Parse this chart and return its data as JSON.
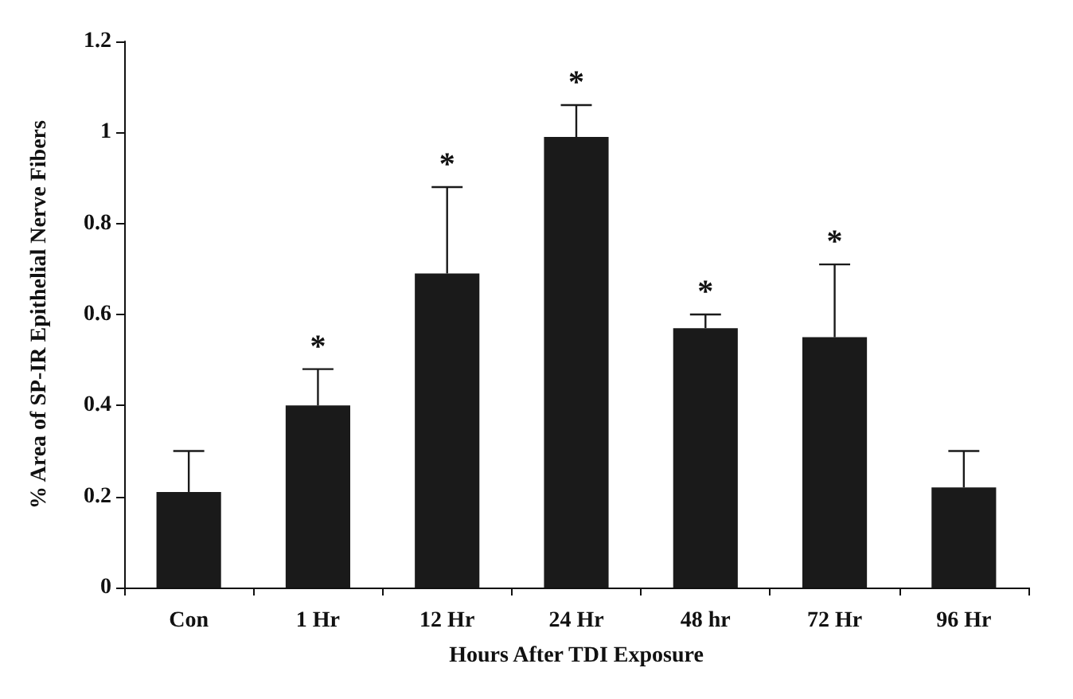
{
  "chart_data": {
    "type": "bar",
    "xlabel": "Hours After TDI Exposure",
    "ylabel": "% Area of SP-IR Epithelial Nerve Fibers",
    "categories": [
      "Con",
      "1 Hr",
      "12 Hr",
      "24 Hr",
      "48 hr",
      "72 Hr",
      "96 Hr"
    ],
    "values": [
      0.21,
      0.4,
      0.69,
      0.99,
      0.57,
      0.55,
      0.22
    ],
    "errors": [
      [
        0.21,
        0.3
      ],
      [
        0.4,
        0.48
      ],
      [
        0.69,
        0.88
      ],
      [
        0.99,
        1.06
      ],
      [
        0.57,
        0.6
      ],
      [
        0.55,
        0.71
      ],
      [
        0.22,
        0.3
      ]
    ],
    "color": "#1a1a1a",
    "ylim": [
      0,
      1.2
    ],
    "yticks": [
      0,
      0.2,
      0.4,
      0.6,
      0.8,
      1,
      1.2
    ],
    "grid": false,
    "annotations": [
      {
        "text": "*",
        "x": "1 Hr",
        "y": 0.48
      },
      {
        "text": "*",
        "x": "12 Hr",
        "y": 0.88
      },
      {
        "text": "*",
        "x": "24 Hr",
        "y": 1.06
      },
      {
        "text": "*",
        "x": "48 hr",
        "y": 0.6
      },
      {
        "text": "*",
        "x": "72 Hr",
        "y": 0.71
      }
    ]
  }
}
